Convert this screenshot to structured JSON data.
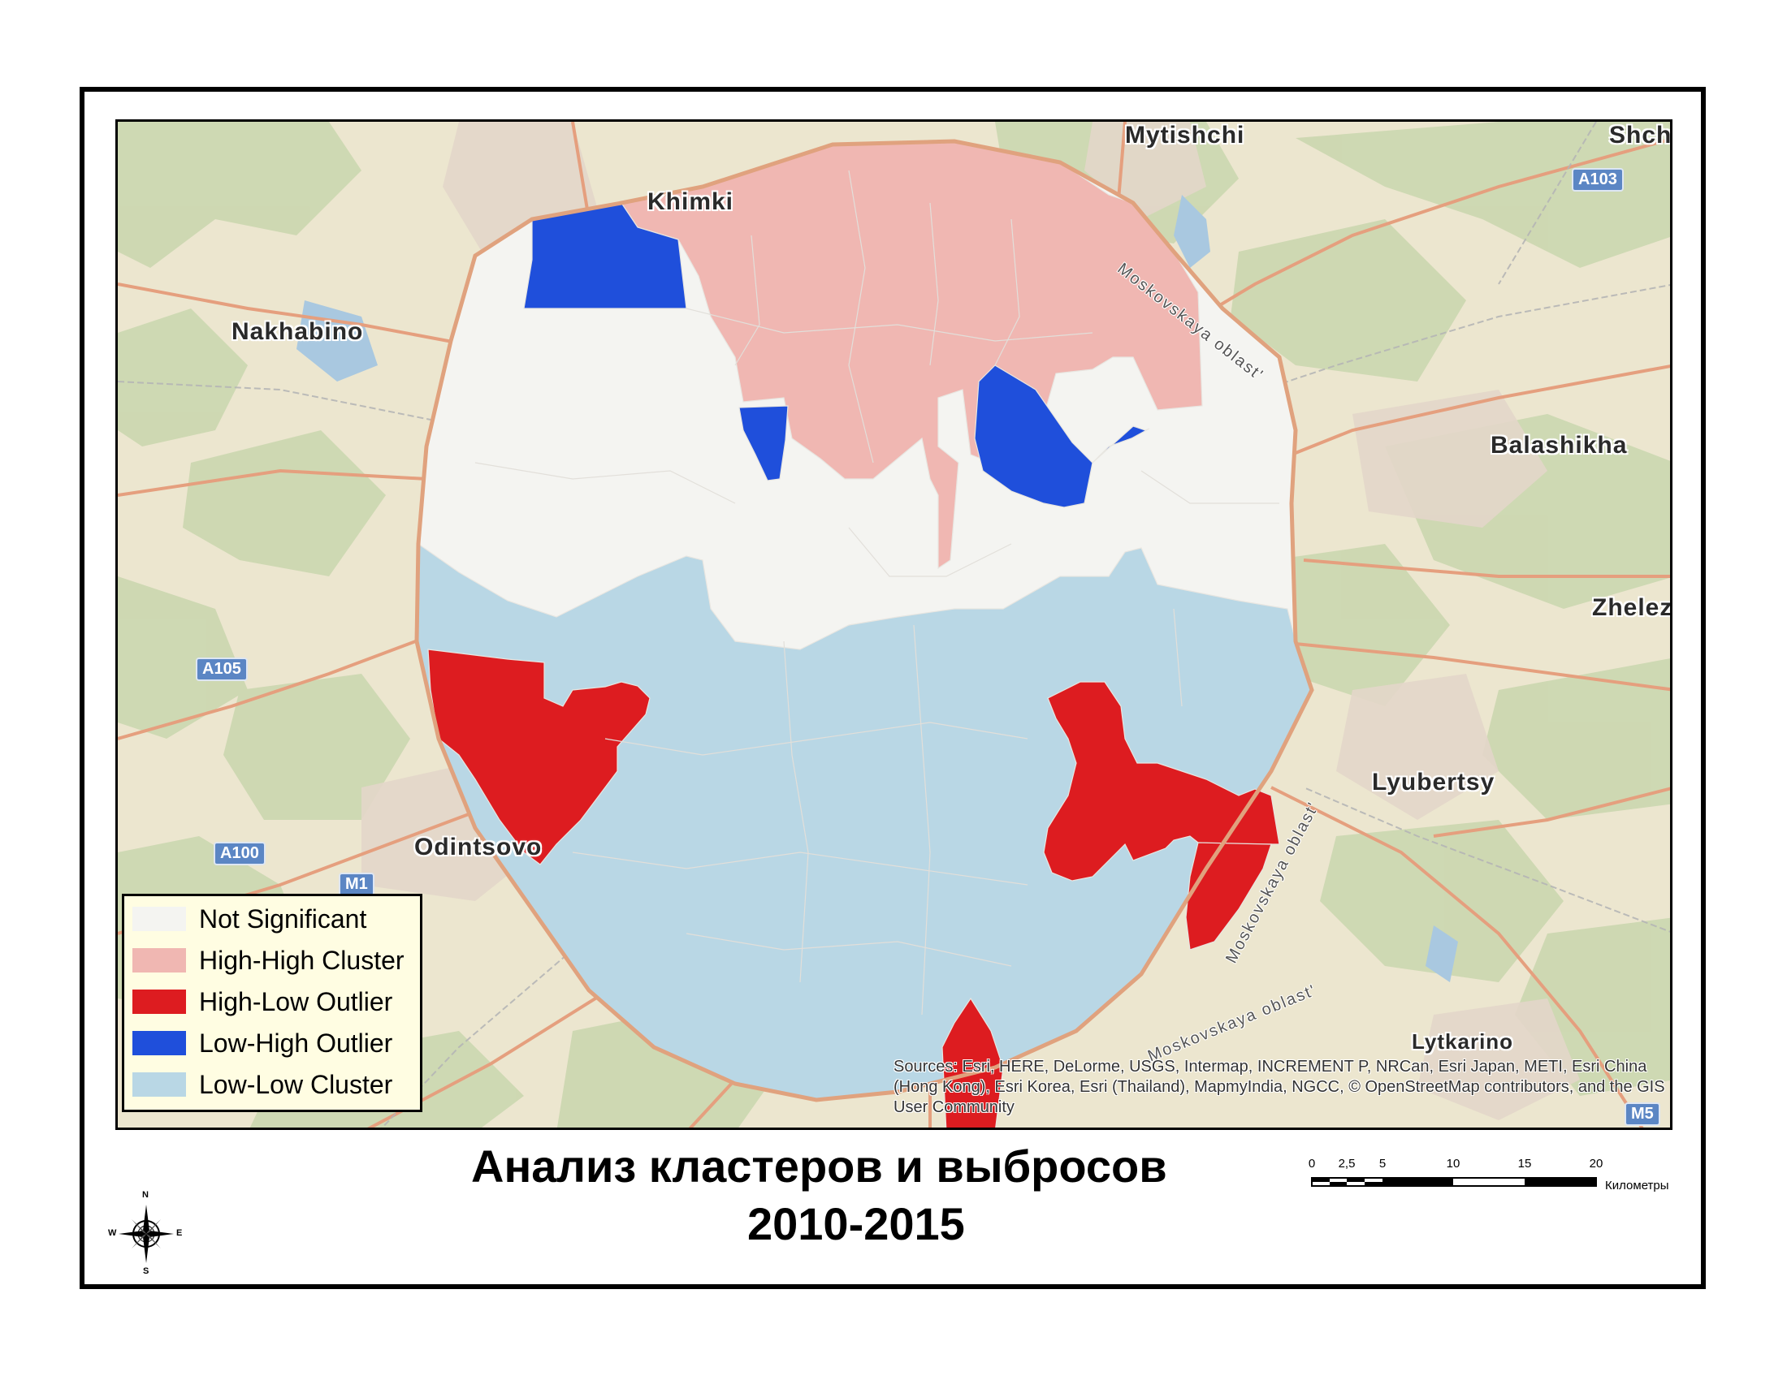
{
  "map": {
    "places": [
      {
        "key": "mytishchi",
        "label": "Mytishchi"
      },
      {
        "key": "shch",
        "label": "Shch"
      },
      {
        "key": "khimki",
        "label": "Khimki"
      },
      {
        "key": "nakhabino",
        "label": "Nakhabino"
      },
      {
        "key": "balashikha",
        "label": "Balashikha"
      },
      {
        "key": "zhelez",
        "label": "Zhelez"
      },
      {
        "key": "lyubertsy",
        "label": "Lyubertsy"
      },
      {
        "key": "odintsovo",
        "label": "Odintsovo"
      },
      {
        "key": "lytkarino",
        "label": "Lytkarino"
      }
    ],
    "road_shields": [
      "A103",
      "A105",
      "A100",
      "M1",
      "M5"
    ],
    "road_labels": [
      "Moskovskaya oblast'",
      "Moskovskaya oblast'",
      "Moskovskaya oblast'"
    ]
  },
  "legend": {
    "items": [
      {
        "label": "Not Significant",
        "color": "#f4f4f1"
      },
      {
        "label": "High-High Cluster",
        "color": "#f0b7b2"
      },
      {
        "label": "High-Low Outlier",
        "color": "#dd1c20"
      },
      {
        "label": "Low-High Outlier",
        "color": "#1f4fdb"
      },
      {
        "label": "Low-Low Cluster",
        "color": "#b9d7e5"
      }
    ]
  },
  "credits": "Sources: Esri, HERE, DeLorme, USGS, Intermap, INCREMENT P, NRCan, Esri Japan, METI, Esri China (Hong Kong), Esri Korea, Esri (Thailand), MapmyIndia, NGCC, © OpenStreetMap contributors, and the GIS User Community",
  "title": {
    "line1": "Анализ кластеров и выбросов",
    "line2": "2010-2015"
  },
  "scale": {
    "ticks": [
      "0",
      "2,5",
      "5",
      "10",
      "15",
      "20"
    ],
    "unit": "Километры"
  },
  "compass": {
    "n": "N",
    "s": "S",
    "e": "E",
    "w": "W"
  }
}
